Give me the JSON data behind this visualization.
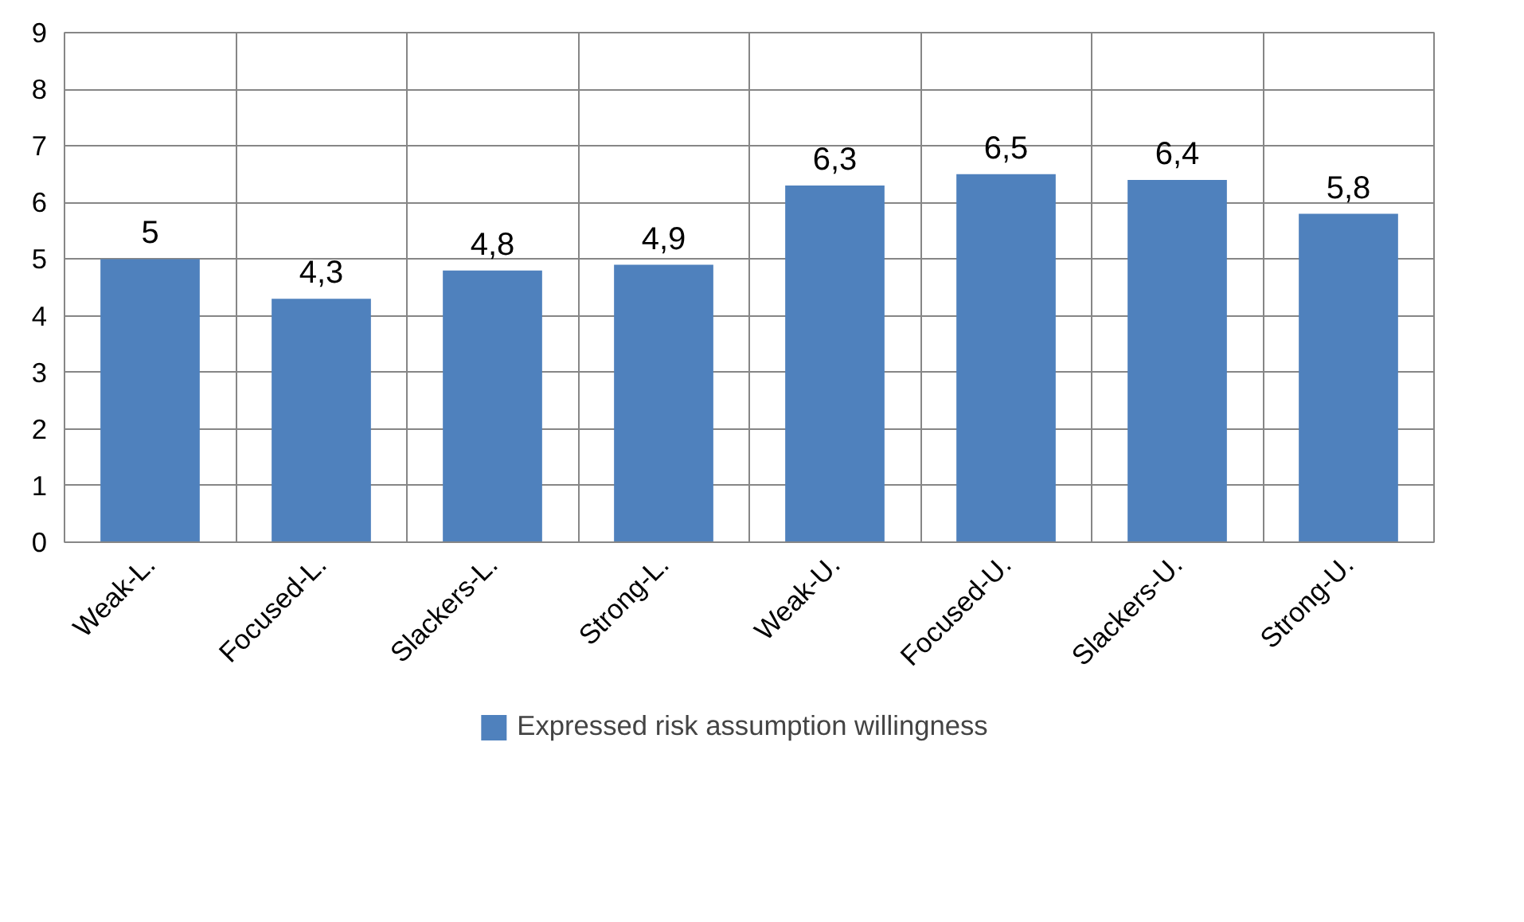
{
  "chart_data": {
    "type": "bar",
    "categories": [
      "Weak-L.",
      "Focused-L.",
      "Slackers-L.",
      "Strong-L.",
      "Weak-U.",
      "Focused-U.",
      "Slackers-U.",
      "Strong-U."
    ],
    "series": [
      {
        "name": "Expressed risk assumption willingness",
        "color": "#4f81bd",
        "values": [
          5,
          4.3,
          4.8,
          4.9,
          6.3,
          6.5,
          6.4,
          5.8
        ],
        "value_labels": [
          "5",
          "4,3",
          "4,8",
          "4,9",
          "6,3",
          "6,5",
          "6,4",
          "5,8"
        ]
      }
    ],
    "ylim": [
      0,
      9
    ],
    "yticks": [
      0,
      1,
      2,
      3,
      4,
      5,
      6,
      7,
      8,
      9
    ],
    "grid": true,
    "legend": "bottom"
  }
}
